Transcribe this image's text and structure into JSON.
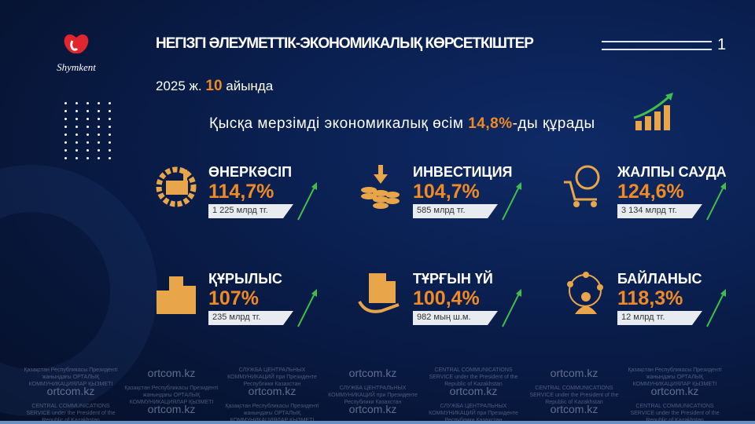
{
  "logo": {
    "text": "Shymkent",
    "colors": [
      "#e0262f",
      "#ffffff"
    ]
  },
  "header": {
    "title": "НЕГІЗГІ ӘЛЕУМЕТТІК-ЭКОНОМИКАЛЫҚ КӨРСЕТКІШТЕР",
    "page_number": "1"
  },
  "period": {
    "year": "2025 ж.",
    "month": "10",
    "suffix": "айында"
  },
  "growth": {
    "prefix": "Қысқа мерзімді экономикалық өсім ",
    "value": "14,8%",
    "suffix": "-ды құрады",
    "icon": "growth-bar-chart-icon"
  },
  "accent": "#f08a24",
  "cards": [
    {
      "title": "ӨНЕРКӘСІП",
      "percent": "114,7%",
      "amount": "1 225 млрд тг.",
      "icon": "factory-gear-icon"
    },
    {
      "title": "ИНВЕСТИЦИЯ",
      "percent": "104,7%",
      "amount": "585 млрд тг.",
      "icon": "coins-arrow-icon"
    },
    {
      "title": "ЖАЛПЫ САУДА",
      "percent": "124,6%",
      "amount": "3 134 млрд тг.",
      "icon": "globe-cart-icon"
    },
    {
      "title": "ҚҰРЫЛЫС",
      "percent": "107%",
      "amount": "235 млрд тг.",
      "icon": "buildings-icon"
    },
    {
      "title": "ТҰРҒЫН ҮЙ",
      "percent": "100,4%",
      "amount": "982 мың ш.м.",
      "icon": "house-hand-icon"
    },
    {
      "title": "БАЙЛАНЫС",
      "percent": "118,3%",
      "amount": "12 млрд тг.",
      "icon": "network-person-icon"
    }
  ],
  "watermark": {
    "site": "ortcom.kz",
    "kz": "Қазақстан Республикасы Президенті жанындағы ОРТАЛЫҚ КОММУНИКАЦИЯЛАР ҚЫЗМЕТІ",
    "ru": "СЛУЖБА ЦЕНТРАЛЬНЫХ КОММУНИКАЦИЙ при Президенте Республики Казахстан",
    "en": "CENTRAL COMMUNICATIONS SERVICE under the President of the Republic of Kazakhstan"
  }
}
